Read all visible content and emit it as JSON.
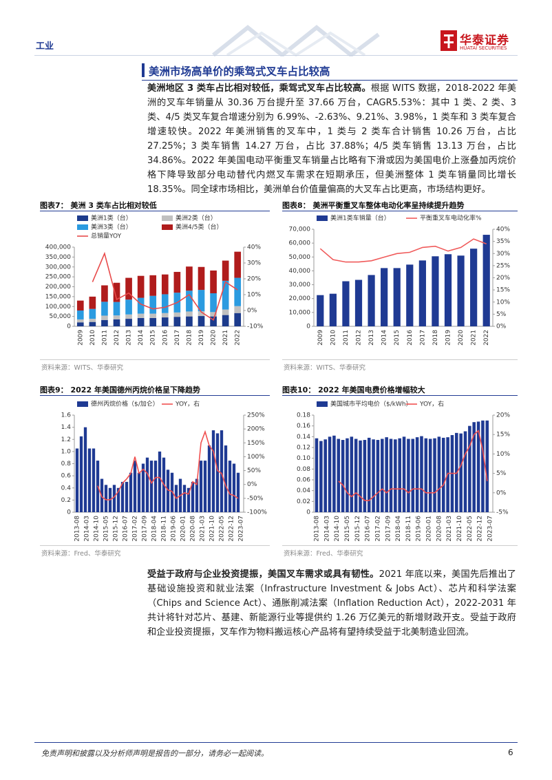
{
  "header": {
    "sector": "工业",
    "logo": "华泰证券",
    "logo_en": "HUATAI SECURITIES"
  },
  "section_title": "美洲市场高单价的乘驾式叉车占比较高",
  "paragraphs": [
    {
      "lead": "美洲地区 3 类车占比相对较低，乘驾式叉车占比较高。",
      "body": "根据 WITS 数据，2018-2022 年美洲的叉车年销量从 30.36 万台提升至 37.66 万台，CAGR5.53%：其中 1 类、2 类、3 类、4/5 类叉车复合增速分别为 6.99%、-2.63%、9.21%、3.98%，1 类车和 3 类车复合增速较快。2022 年美洲销售的叉车中，1 类与 2 类车合计销售 10.26 万台，占比 27.25%；3 类车销售 14.27 万台，占比 37.88%；4/5 类车销售 13.13 万台，占比 34.86%。2022 年美国电动平衡重叉车销量占比略有下滑或因为美国电价上涨叠加丙烷价格下降导致部分电动替代内燃叉车需求在短期承压，但美洲整体 1 类车销量同比增长 18.35%。同全球市场相比，美洲单台价值量偏高的大叉车占比更高，市场结构更好。"
    },
    {
      "lead": "受益于政府与企业投资提振，美国叉车需求或具有韧性。",
      "body": "2021 年底以来，美国先后推出了基础设施投资和就业法案（Infrastructure Investment & Jobs Act）、芯片和科学法案（Chips and Science Act）、通胀削减法案（Inflation Reduction Act），2022-2031 年共计将针对芯片、基建、新能源行业等提供约 1.26 万亿美元的新增财政开支。受益于政府和企业投资提振，叉车作为物料搬运核心产品将有望持续受益于北美制造业回流。"
    }
  ],
  "chart_data": [
    {
      "type": "bar",
      "label": "图表7：",
      "title": "美洲 3 类车占比相对较低",
      "source": "资料来源：WITS、华泰研究",
      "stacked": true,
      "grid": false,
      "categories": [
        "2009",
        "2010",
        "2011",
        "2012",
        "2013",
        "2014",
        "2015",
        "2016",
        "2017",
        "2018",
        "2019",
        "2020",
        "2021",
        "2022"
      ],
      "ylim": [
        0,
        400000
      ],
      "yticks": [
        0,
        {
          "value": 50000,
          "label": "50,000"
        },
        {
          "value": 100000,
          "label": "100,000"
        },
        {
          "value": 150000,
          "label": "150,000"
        },
        {
          "value": 200000,
          "label": "200,000"
        },
        {
          "value": 250000,
          "label": "250,000"
        },
        {
          "value": 300000,
          "label": "300,000"
        },
        {
          "value": 350000,
          "label": "350,000"
        },
        {
          "value": 400000,
          "label": "400,000"
        }
      ],
      "y2lim": [
        -10,
        40
      ],
      "y2ticks": [
        {
          "value": -10,
          "label": "-10%"
        },
        {
          "value": 0,
          "label": "0%"
        },
        {
          "value": 10,
          "label": "10%"
        },
        {
          "value": 20,
          "label": "20%"
        },
        {
          "value": 30,
          "label": "30%"
        },
        {
          "value": 40,
          "label": "40%"
        }
      ],
      "series": [
        {
          "name": "美洲1类（台）",
          "color": "#1c3b8c",
          "type": "bar",
          "values": [
            20000,
            22000,
            32000,
            35000,
            38000,
            42000,
            42000,
            45000,
            48000,
            50000,
            52000,
            50000,
            57000,
            67000
          ]
        },
        {
          "name": "美洲2类（台）",
          "color": "#c0c0c0",
          "type": "bar",
          "values": [
            15000,
            16000,
            22000,
            20000,
            22000,
            22000,
            22000,
            22000,
            22000,
            25000,
            24000,
            22000,
            28000,
            35000
          ]
        },
        {
          "name": "美洲3类（台）",
          "color": "#2b9be0",
          "type": "bar",
          "values": [
            45000,
            50000,
            70000,
            68000,
            75000,
            80000,
            90000,
            95000,
            100000,
            105000,
            108000,
            95000,
            145000,
            143000
          ]
        },
        {
          "name": "美洲4/5类（台）",
          "color": "#b01c1c",
          "type": "bar",
          "values": [
            50000,
            62000,
            83000,
            97000,
            110000,
            111000,
            104000,
            100000,
            105000,
            122000,
            116000,
            115000,
            102000,
            132000
          ]
        },
        {
          "name": "总销量YOY",
          "color": "#e84a4a",
          "type": "line",
          "axis": "y2",
          "values": [
            null,
            18,
            36,
            7,
            11,
            4,
            1,
            2,
            5,
            10,
            -1,
            -6,
            18,
            13
          ]
        }
      ]
    },
    {
      "type": "bar",
      "label": "图表8：",
      "title": "美洲平衡重叉车整体电动化率呈持续提升趋势",
      "source": "资料来源：WITS、华泰研究",
      "stacked": false,
      "grid": false,
      "categories": [
        "2009",
        "2010",
        "2011",
        "2012",
        "2013",
        "2014",
        "2015",
        "2016",
        "2017",
        "2018",
        "2019",
        "2020",
        "2021",
        "2022"
      ],
      "ylim": [
        0,
        70000
      ],
      "yticks": [
        0,
        {
          "value": 10000,
          "label": "10,000"
        },
        {
          "value": 20000,
          "label": "20,000"
        },
        {
          "value": 30000,
          "label": "30,000"
        },
        {
          "value": 40000,
          "label": "40,000"
        },
        {
          "value": 50000,
          "label": "50,000"
        },
        {
          "value": 60000,
          "label": "60,000"
        },
        {
          "value": 70000,
          "label": "70,000"
        }
      ],
      "y2lim": [
        0,
        40
      ],
      "y2ticks": [
        {
          "value": 0,
          "label": "0%"
        },
        {
          "value": 5,
          "label": "5%"
        },
        {
          "value": 10,
          "label": "10%"
        },
        {
          "value": 15,
          "label": "15%"
        },
        {
          "value": 20,
          "label": "20%"
        },
        {
          "value": 25,
          "label": "25%"
        },
        {
          "value": 30,
          "label": "30%"
        },
        {
          "value": 35,
          "label": "35%"
        },
        {
          "value": 40,
          "label": "40%"
        }
      ],
      "series": [
        {
          "name": "美洲1类车销量（台）",
          "color": "#1f3a93",
          "type": "bar",
          "values": [
            22500,
            23500,
            32500,
            33500,
            37000,
            42000,
            42000,
            44500,
            47500,
            50500,
            52000,
            51000,
            56000,
            66000
          ]
        },
        {
          "name": "平衡重叉车电动化率%",
          "color": "#f05a5a",
          "type": "line",
          "axis": "y2",
          "values": [
            32,
            27.5,
            26.5,
            26.5,
            27,
            28.5,
            30,
            30.5,
            32.5,
            33,
            31,
            32.5,
            36,
            34
          ]
        }
      ]
    },
    {
      "type": "bar",
      "label": "图表9：",
      "title": "2022 年美国德州丙烷价格呈下降趋势",
      "source": "资料来源：Fred、华泰研究",
      "stacked": false,
      "grid": false,
      "x": [
        "2013-08",
        "2013-11",
        "2014-02",
        "2014-05",
        "2014-08",
        "2014-11",
        "2015-02",
        "2015-05",
        "2015-08",
        "2015-11",
        "2016-02",
        "2016-05",
        "2016-08",
        "2016-11",
        "2017-02",
        "2017-05",
        "2017-08",
        "2017-11",
        "2018-02",
        "2018-05",
        "2018-08",
        "2018-11",
        "2019-02",
        "2019-05",
        "2019-08",
        "2019-11",
        "2020-02",
        "2020-05",
        "2020-08",
        "2020-11",
        "2021-02",
        "2021-05",
        "2021-08",
        "2021-11",
        "2022-02",
        "2022-05",
        "2022-08",
        "2022-11",
        "2023-02",
        "2023-05"
      ],
      "xlim": [
        "2013-08",
        "2023-07"
      ],
      "xticks": [
        "2013-08",
        "2014-03",
        "2014-10",
        "2015-05",
        "2015-12",
        "2016-07",
        "2017-02",
        "2017-09",
        "2018-04",
        "2018-11",
        "2019-06",
        "2020-01",
        "2020-08",
        "2021-03",
        "2021-10",
        "2022-05",
        "2022-12",
        "2023-07"
      ],
      "ylim": [
        0,
        1.6
      ],
      "yticks": [
        0,
        0.2,
        0.4,
        0.6,
        0.8,
        {
          "value": 1,
          "label": "1.0"
        },
        1.2,
        1.4,
        1.6
      ],
      "y2lim": [
        -100,
        250
      ],
      "y2ticks": [
        {
          "value": -100,
          "label": "-100%"
        },
        {
          "value": -50,
          "label": "-50%"
        },
        {
          "value": 0,
          "label": "0%"
        },
        {
          "value": 50,
          "label": "50%"
        },
        {
          "value": 100,
          "label": "100%"
        },
        {
          "value": 150,
          "label": "150%"
        },
        {
          "value": 200,
          "label": "200%"
        },
        {
          "value": 250,
          "label": "250%"
        }
      ],
      "series": [
        {
          "name": "德州丙烷价格（$/加仑）",
          "color": "#1f3a93",
          "type": "bar",
          "values": [
            1.05,
            1.25,
            1.4,
            1.05,
            1.05,
            0.85,
            0.55,
            0.45,
            0.4,
            0.45,
            0.4,
            0.5,
            0.5,
            0.65,
            0.85,
            0.65,
            0.8,
            0.9,
            0.85,
            0.85,
            1.0,
            0.9,
            0.7,
            0.65,
            0.45,
            0.55,
            0.45,
            0.4,
            0.5,
            0.55,
            0.85,
            0.85,
            1.1,
            1.35,
            1.3,
            1.35,
            1.1,
            0.85,
            0.8,
            0.65
          ]
        },
        {
          "name": "YOY，右",
          "color": "#f05050",
          "type": "line",
          "axis": "y2",
          "values": [
            null,
            null,
            null,
            null,
            null,
            -5,
            -45,
            -55,
            -55,
            -45,
            -25,
            5,
            20,
            40,
            100,
            40,
            55,
            40,
            5,
            25,
            25,
            0,
            -20,
            -25,
            -50,
            -40,
            -30,
            -35,
            10,
            0,
            150,
            190,
            140,
            120,
            50,
            40,
            -5,
            -35,
            -40,
            -50
          ]
        }
      ]
    },
    {
      "type": "bar",
      "label": "图表10：",
      "title": "2022 年美国电费价格增幅较大",
      "source": "资料来源：Fred、华泰研究",
      "stacked": false,
      "grid": false,
      "x": [
        "2013-08",
        "2013-11",
        "2014-02",
        "2014-05",
        "2014-08",
        "2014-11",
        "2015-02",
        "2015-05",
        "2015-08",
        "2015-11",
        "2016-02",
        "2016-05",
        "2016-08",
        "2016-11",
        "2017-02",
        "2017-05",
        "2017-08",
        "2017-11",
        "2018-02",
        "2018-05",
        "2018-08",
        "2018-11",
        "2019-02",
        "2019-05",
        "2019-08",
        "2019-11",
        "2020-02",
        "2020-05",
        "2020-08",
        "2020-11",
        "2021-02",
        "2021-05",
        "2021-08",
        "2021-11",
        "2022-02",
        "2022-05",
        "2022-08",
        "2022-11",
        "2023-02",
        "2023-05"
      ],
      "xlim": [
        "2013-08",
        "2023-07"
      ],
      "xticks": [
        "2013-08",
        "2014-03",
        "2014-10",
        "2015-05",
        "2015-12",
        "2016-07",
        "2017-02",
        "2017-09",
        "2018-04",
        "2018-11",
        "2019-06",
        "2020-01",
        "2020-08",
        "2021-03",
        "2021-10",
        "2022-05",
        "2022-12",
        "2023-07"
      ],
      "ylim": [
        0,
        0.18
      ],
      "yticks": [
        0,
        0.02,
        0.04,
        0.06,
        0.08,
        {
          "value": 0.1,
          "label": "0.10"
        },
        0.12,
        0.14,
        0.16,
        0.18
      ],
      "y2lim": [
        -5,
        20
      ],
      "y2ticks": [
        {
          "value": -5,
          "label": "-5%"
        },
        {
          "value": 0,
          "label": "0%"
        },
        {
          "value": 5,
          "label": "5%"
        },
        {
          "value": 10,
          "label": "10%"
        },
        {
          "value": 15,
          "label": "15%"
        },
        {
          "value": 20,
          "label": "20%"
        }
      ],
      "series": [
        {
          "name": "美国城市平均电价（$/kWh）",
          "color": "#1f3a93",
          "type": "bar",
          "values": [
            0.137,
            0.132,
            0.135,
            0.14,
            0.142,
            0.136,
            0.134,
            0.137,
            0.14,
            0.136,
            0.133,
            0.134,
            0.138,
            0.135,
            0.134,
            0.136,
            0.139,
            0.136,
            0.135,
            0.137,
            0.14,
            0.136,
            0.136,
            0.139,
            0.141,
            0.137,
            0.136,
            0.137,
            0.14,
            0.138,
            0.139,
            0.143,
            0.147,
            0.146,
            0.15,
            0.16,
            0.167,
            0.168,
            0.17,
            0.17
          ]
        },
        {
          "name": "YOY，右",
          "color": "#f05050",
          "type": "line",
          "axis": "y2",
          "values": [
            null,
            null,
            null,
            null,
            null,
            3,
            2,
            0,
            -1,
            0,
            -1,
            -2,
            -2,
            -1,
            0,
            1,
            0,
            1,
            1,
            1,
            1,
            0,
            1,
            1,
            1,
            0,
            0,
            0,
            1,
            2,
            5,
            5,
            5,
            7,
            10,
            12,
            15,
            16,
            11,
            3
          ]
        }
      ]
    }
  ],
  "footer": {
    "disclaimer": "免责声明和披露以及分析师声明是报告的一部分，请务必一起阅读。",
    "page": "6"
  }
}
